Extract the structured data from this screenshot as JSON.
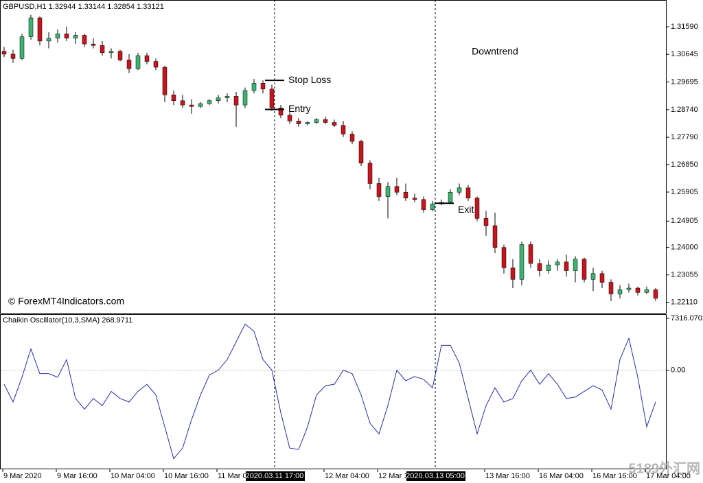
{
  "chart_data": [
    {
      "type": "candlestick",
      "title": "GBPUSD,H1  1.32944 1.33144 1.32854 1.33121",
      "watermark": "© ForexMT4Indicators.com",
      "annotations": [
        {
          "text": "Downtrend",
          "index": 55,
          "price": 1.3072
        }
      ],
      "levels": [
        {
          "label": "Stop Loss",
          "index": 30,
          "price": 1.2975
        },
        {
          "label": "Entry",
          "index": 30,
          "price": 1.2875
        },
        {
          "label": "Exit",
          "index": 49,
          "price": 1.2552
        }
      ],
      "up_color": "#3cb371",
      "down_color": "#c8141c",
      "ylim": [
        1.2175,
        1.3249
      ],
      "yticks": [
        {
          "value": 1.3159,
          "label": "1.31590"
        },
        {
          "value": 1.30645,
          "label": "1.30645"
        },
        {
          "value": 1.29695,
          "label": "1.29695"
        },
        {
          "value": 1.2874,
          "label": "1.28740"
        },
        {
          "value": 1.2779,
          "label": "1.27790"
        },
        {
          "value": 1.2685,
          "label": "1.26850"
        },
        {
          "value": 1.25905,
          "label": "1.25905"
        },
        {
          "value": 1.24905,
          "label": "1.24905"
        },
        {
          "value": 1.24,
          "label": "1.24000"
        },
        {
          "value": 1.23055,
          "label": "1.23055"
        },
        {
          "value": 1.2211,
          "label": "1.22110"
        }
      ],
      "xticks": [
        {
          "value": 0,
          "label": "9 Mar 2020"
        },
        {
          "value": 6,
          "label": "9 Mar 16:00"
        },
        {
          "value": 12,
          "label": "10 Mar 04:00"
        },
        {
          "value": 18,
          "label": "10 Mar 16:00"
        },
        {
          "value": 24,
          "label": "11 Mar 04:00"
        },
        {
          "value": 36,
          "label": "12 Mar 04:00"
        },
        {
          "value": 42,
          "label": "12 Mar 16:00"
        },
        {
          "value": 54,
          "label": "13 Mar 16:00"
        },
        {
          "value": 60,
          "label": "16 Mar 04:00"
        },
        {
          "value": 66,
          "label": "16 Mar 16:00"
        },
        {
          "value": 72,
          "label": "17 Mar 04:00"
        }
      ],
      "markers": [
        {
          "index": 30,
          "label": "2020.03.11 17:00"
        },
        {
          "index": 48,
          "label": "2020.03.13 05:00"
        }
      ],
      "ohlc": [
        [
          1.3075,
          1.309,
          1.3055,
          1.3065
        ],
        [
          1.3065,
          1.308,
          1.3035,
          1.305
        ],
        [
          1.305,
          1.3135,
          1.3045,
          1.3125
        ],
        [
          1.3125,
          1.32,
          1.3115,
          1.319
        ],
        [
          1.319,
          1.3195,
          1.3095,
          1.311
        ],
        [
          1.311,
          1.314,
          1.3085,
          1.312
        ],
        [
          1.312,
          1.315,
          1.3105,
          1.3135
        ],
        [
          1.3135,
          1.316,
          1.311,
          1.312
        ],
        [
          1.312,
          1.314,
          1.31,
          1.313
        ],
        [
          1.313,
          1.3135,
          1.309,
          1.31
        ],
        [
          1.31,
          1.312,
          1.3085,
          1.3095
        ],
        [
          1.3095,
          1.311,
          1.306,
          1.307
        ],
        [
          1.307,
          1.3085,
          1.305,
          1.3075
        ],
        [
          1.3075,
          1.308,
          1.304,
          1.3045
        ],
        [
          1.3045,
          1.3065,
          1.3,
          1.3015
        ],
        [
          1.3015,
          1.307,
          1.301,
          1.306
        ],
        [
          1.306,
          1.307,
          1.303,
          1.304
        ],
        [
          1.304,
          1.305,
          1.301,
          1.302
        ],
        [
          1.302,
          1.3025,
          1.29,
          1.2925
        ],
        [
          1.2925,
          1.294,
          1.289,
          1.2905
        ],
        [
          1.2905,
          1.2925,
          1.288,
          1.289
        ],
        [
          1.289,
          1.291,
          1.286,
          1.2885
        ],
        [
          1.2885,
          1.29,
          1.288,
          1.2895
        ],
        [
          1.2895,
          1.291,
          1.289,
          1.2905
        ],
        [
          1.2905,
          1.2925,
          1.2895,
          1.2915
        ],
        [
          1.2915,
          1.293,
          1.29,
          1.292
        ],
        [
          1.292,
          1.2935,
          1.2815,
          1.289
        ],
        [
          1.289,
          1.295,
          1.288,
          1.294
        ],
        [
          1.294,
          1.298,
          1.293,
          1.2965
        ],
        [
          1.2965,
          1.2975,
          1.293,
          1.2945
        ],
        [
          1.2945,
          1.296,
          1.287,
          1.288
        ],
        [
          1.288,
          1.289,
          1.2845,
          1.2855
        ],
        [
          1.2855,
          1.2865,
          1.2825,
          1.2835
        ],
        [
          1.2835,
          1.2845,
          1.2815,
          1.2825
        ],
        [
          1.2825,
          1.2835,
          1.282,
          1.283
        ],
        [
          1.283,
          1.2845,
          1.2825,
          1.284
        ],
        [
          1.284,
          1.285,
          1.2825,
          1.283
        ],
        [
          1.283,
          1.284,
          1.2815,
          1.282
        ],
        [
          1.282,
          1.2835,
          1.278,
          1.279
        ],
        [
          1.279,
          1.28,
          1.2755,
          1.2765
        ],
        [
          1.2765,
          1.277,
          1.268,
          1.269
        ],
        [
          1.269,
          1.27,
          1.26,
          1.262
        ],
        [
          1.262,
          1.264,
          1.256,
          1.2575
        ],
        [
          1.2575,
          1.2625,
          1.25,
          1.261
        ],
        [
          1.261,
          1.264,
          1.258,
          1.259
        ],
        [
          1.259,
          1.262,
          1.256,
          1.257
        ],
        [
          1.257,
          1.2585,
          1.2555,
          1.2565
        ],
        [
          1.2565,
          1.2575,
          1.252,
          1.253
        ],
        [
          1.253,
          1.256,
          1.2525,
          1.255
        ],
        [
          1.255,
          1.2565,
          1.2545,
          1.2555
        ],
        [
          1.2555,
          1.26,
          1.255,
          1.259
        ],
        [
          1.259,
          1.262,
          1.258,
          1.2605
        ],
        [
          1.2605,
          1.2615,
          1.256,
          1.257
        ],
        [
          1.257,
          1.2575,
          1.249,
          1.25
        ],
        [
          1.25,
          1.2525,
          1.244,
          1.2475
        ],
        [
          1.2475,
          1.252,
          1.238,
          1.24
        ],
        [
          1.24,
          1.241,
          1.231,
          1.233
        ],
        [
          1.233,
          1.236,
          1.226,
          1.229
        ],
        [
          1.229,
          1.242,
          1.227,
          1.241
        ],
        [
          1.241,
          1.242,
          1.233,
          1.2345
        ],
        [
          1.2345,
          1.236,
          1.23,
          1.232
        ],
        [
          1.232,
          1.2355,
          1.231,
          1.234
        ],
        [
          1.234,
          1.236,
          1.232,
          1.235
        ],
        [
          1.235,
          1.2375,
          1.23,
          1.232
        ],
        [
          1.232,
          1.237,
          1.228,
          1.236
        ],
        [
          1.236,
          1.2365,
          1.228,
          1.229
        ],
        [
          1.229,
          1.233,
          1.225,
          1.231
        ],
        [
          1.231,
          1.232,
          1.226,
          1.228
        ],
        [
          1.228,
          1.229,
          1.2215,
          1.224
        ],
        [
          1.224,
          1.227,
          1.2225,
          1.2255
        ],
        [
          1.2255,
          1.2275,
          1.2245,
          1.226
        ],
        [
          1.226,
          1.2265,
          1.2235,
          1.2245
        ],
        [
          1.2245,
          1.2265,
          1.224,
          1.2255
        ],
        [
          1.2255,
          1.226,
          1.2215,
          1.2225
        ]
      ]
    },
    {
      "type": "line",
      "title": "Chaikin Oscillator(10,3,SMA) 268.9711",
      "color": "#2a2aa8",
      "ylim": [
        -13900,
        7800
      ],
      "yticks": [
        7316.0702,
        {
          "value": 0,
          "label": "0.00"
        }
      ],
      "values": [
        -2000,
        -4500,
        -1000,
        3000,
        -500,
        -500,
        -1000,
        1500,
        -4000,
        -5500,
        -4000,
        -5000,
        -3000,
        -4000,
        -4500,
        -3000,
        -2000,
        -3500,
        -8000,
        -12500,
        -11000,
        -7000,
        -3500,
        -700,
        0,
        1500,
        4000,
        6500,
        5500,
        1500,
        0,
        -6000,
        -11000,
        -11200,
        -8000,
        -3500,
        -2200,
        -2000,
        0,
        -500,
        -3500,
        -7500,
        -9000,
        -5000,
        0,
        -1500,
        -900,
        -1300,
        -2500,
        3500,
        3500,
        1000,
        -4000,
        -9000,
        -5000,
        -2500,
        -4500,
        -4000,
        -1500,
        0,
        -2000,
        -500,
        -2000,
        -4000,
        -3800,
        -3000,
        -2200,
        -2800,
        -5500,
        1500,
        4500,
        -1000,
        -8000,
        -4500
      ]
    }
  ],
  "site_badge": "5189外汇网"
}
